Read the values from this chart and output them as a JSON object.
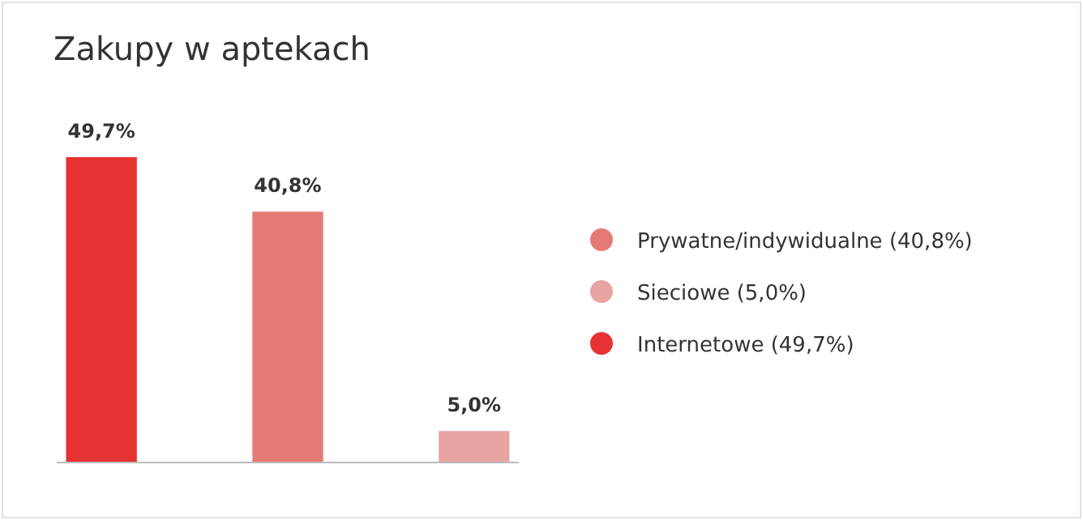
{
  "chart_data": {
    "type": "bar",
    "title": "Zakupy w aptekach",
    "categories": [
      null,
      null,
      null
    ],
    "series": [
      {
        "name": "Prywatne/indywidualne (40,8%)",
        "color": "#e57a74",
        "values": [
          null,
          40.8,
          null
        ],
        "value_labels": [
          null,
          "40,8%",
          null
        ]
      },
      {
        "name": "Sieciowe (5,0%)",
        "color": "#e8a4a2",
        "values": [
          null,
          null,
          5.0
        ],
        "value_labels": [
          null,
          null,
          "5,0%"
        ]
      },
      {
        "name": "Internetowe (49,7%)",
        "color": "#e63232",
        "values": [
          49.7,
          null,
          null
        ],
        "value_labels": [
          "49,7%",
          null,
          null
        ]
      }
    ],
    "stacked": true,
    "legend": "right",
    "grid": false
  }
}
